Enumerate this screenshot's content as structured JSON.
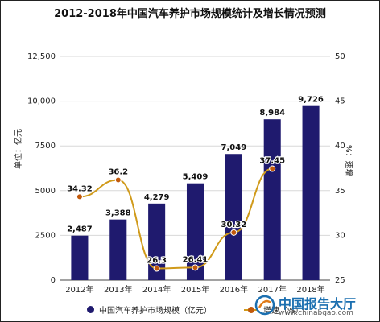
{
  "chart_data": {
    "type": "bar+line",
    "title": "2012-2018年中国汽车养护市场规模统计及增长情况预测",
    "categories": [
      "2012年",
      "2013年",
      "2014年",
      "2015年",
      "2016年",
      "2017年",
      "2018年"
    ],
    "series": [
      {
        "name": "中国汽车养护市场规模（亿元）",
        "type": "bar",
        "axis": "left",
        "color": "#1f1a6e",
        "values": [
          2487,
          3388,
          4279,
          5409,
          7049,
          8984,
          9726
        ],
        "labels": [
          "2,487",
          "3,388",
          "4,279",
          "5,409",
          "7,049",
          "8,984",
          "9,726"
        ]
      },
      {
        "name": "增速（%）",
        "type": "line",
        "axis": "right",
        "color": "#d09a1a",
        "marker_color": "#c2590b",
        "values": [
          34.32,
          36.2,
          26.3,
          26.41,
          30.32,
          37.45,
          null
        ],
        "labels": [
          "34.32",
          "36.2",
          "26.3",
          "26.41",
          "30.32",
          "37.45",
          ""
        ]
      }
    ],
    "y_left": {
      "label": "单位：亿元",
      "ylim": [
        0,
        12500
      ],
      "ticks": [
        0,
        2500,
        5000,
        7500,
        10000,
        12500
      ],
      "tick_labels": [
        "0",
        "2500",
        "5000",
        "7500",
        "10,000",
        "12,500"
      ]
    },
    "y_right": {
      "label": "%：速增",
      "ylim": [
        25,
        50
      ],
      "ticks": [
        25,
        30,
        35,
        40,
        45,
        50
      ],
      "tick_labels": [
        "25",
        "30",
        "35",
        "40",
        "45",
        "50"
      ]
    },
    "grid": true,
    "legend_position": "bottom"
  },
  "watermark": {
    "name": "中国报告大厅",
    "url": "www.chinabgao.com"
  }
}
